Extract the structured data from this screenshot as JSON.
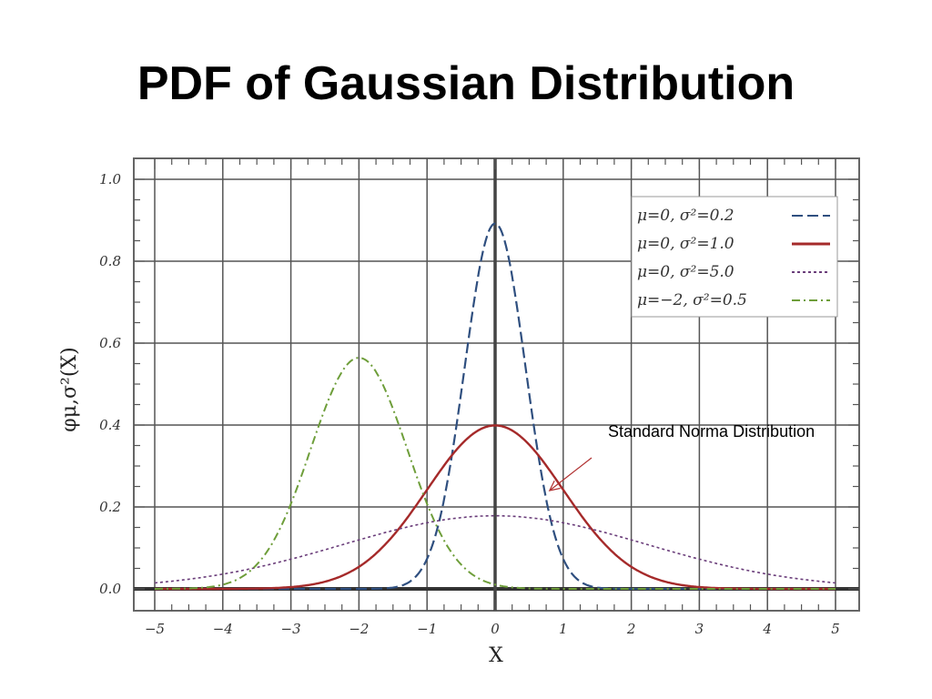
{
  "slide": {
    "title": "PDF of Gaussian Distribution"
  },
  "colors": {
    "series1": "#2f4f7f",
    "series2": "#a52a2a",
    "series3": "#6a3d7a",
    "series4": "#6e9e3a",
    "annotation_arrow": "#b03030"
  },
  "chart_data": {
    "type": "line",
    "title": "",
    "xlabel": "X",
    "ylabel": "φμ,σ²(X)",
    "xlim": [
      -5,
      5
    ],
    "ylim": [
      0,
      1.0
    ],
    "xticks": [
      -5,
      -4,
      -3,
      -2,
      -1,
      0,
      1,
      2,
      3,
      4,
      5
    ],
    "xtick_labels": [
      "−5",
      "−4",
      "−3",
      "−2",
      "−1",
      "0",
      "1",
      "2",
      "3",
      "4",
      "5"
    ],
    "yticks": [
      0,
      0.2,
      0.4,
      0.6,
      0.8,
      1.0
    ],
    "ytick_labels": [
      "0.0",
      "0.2",
      "0.4",
      "0.6",
      "0.8",
      "1.0"
    ],
    "grid": true,
    "legend_position": "top-right",
    "series": [
      {
        "name": "μ=0,    σ²=0.2",
        "mu": 0,
        "variance": 0.2,
        "style": "dashed",
        "color": "#2f4f7f",
        "peak": 0.89
      },
      {
        "name": "μ=0,    σ²=1.0",
        "mu": 0,
        "variance": 1.0,
        "style": "solid",
        "color": "#a52a2a",
        "peak": 0.4
      },
      {
        "name": "μ=0,    σ²=5.0",
        "mu": 0,
        "variance": 5.0,
        "style": "dotted",
        "color": "#6a3d7a",
        "peak": 0.18
      },
      {
        "name": "μ=−2, σ²=0.5",
        "mu": -2,
        "variance": 0.5,
        "style": "dashdot",
        "color": "#6e9e3a",
        "peak": 0.56
      }
    ],
    "annotations": [
      {
        "text": "Standard Norma Distribution",
        "points_to": {
          "x": 0.8,
          "y": 0.24
        }
      }
    ]
  }
}
